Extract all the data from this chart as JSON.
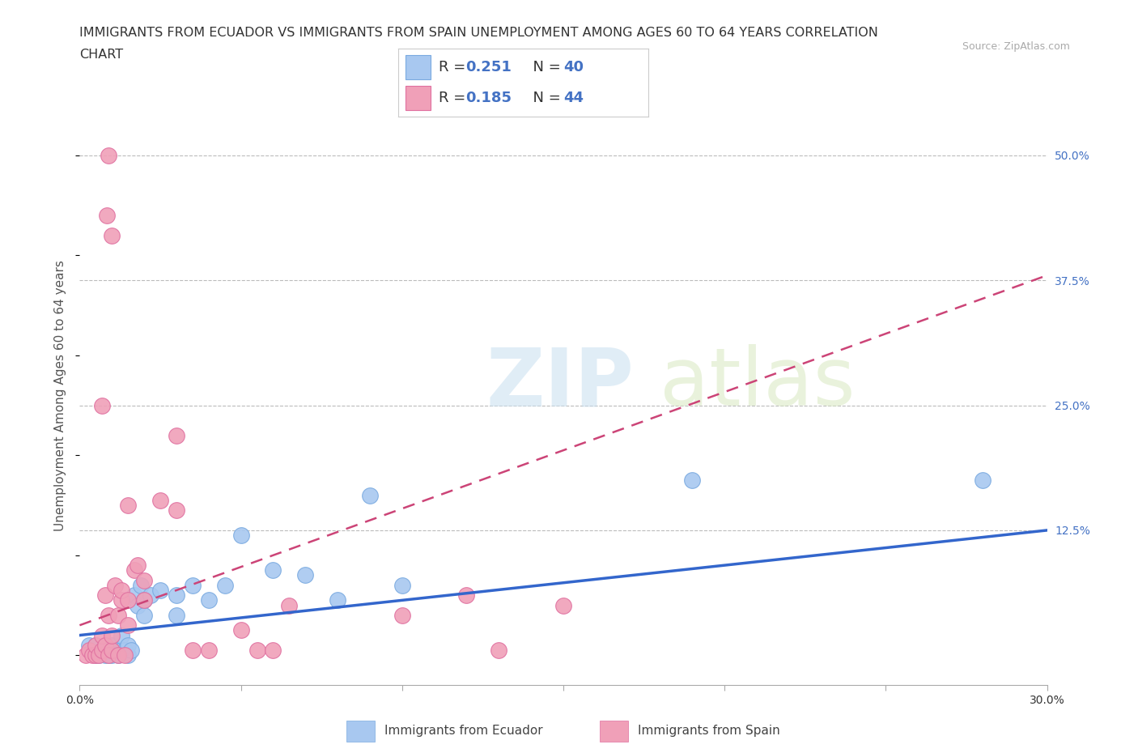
{
  "title_line1": "IMMIGRANTS FROM ECUADOR VS IMMIGRANTS FROM SPAIN UNEMPLOYMENT AMONG AGES 60 TO 64 YEARS CORRELATION",
  "title_line2": "CHART",
  "source": "Source: ZipAtlas.com",
  "ylabel": "Unemployment Among Ages 60 to 64 years",
  "xlim": [
    0.0,
    0.3
  ],
  "ylim": [
    -0.03,
    0.55
  ],
  "xticks": [
    0.0,
    0.05,
    0.1,
    0.15,
    0.2,
    0.25,
    0.3
  ],
  "ytick_labels_right": [
    "12.5%",
    "25.0%",
    "37.5%",
    "50.0%"
  ],
  "ytick_vals_right": [
    0.125,
    0.25,
    0.375,
    0.5
  ],
  "grid_color": "#bbbbbb",
  "ecuador_color": "#a8c8f0",
  "spain_color": "#f0a0b8",
  "ecuador_edge": "#7aaae0",
  "spain_edge": "#e070a0",
  "ecuador_R": "0.251",
  "ecuador_N": "40",
  "spain_R": "0.185",
  "spain_N": "44",
  "ecuador_scatter": [
    [
      0.003,
      0.01
    ],
    [
      0.004,
      0.005
    ],
    [
      0.005,
      0.0
    ],
    [
      0.005,
      0.01
    ],
    [
      0.006,
      0.0
    ],
    [
      0.007,
      0.005
    ],
    [
      0.008,
      0.0
    ],
    [
      0.008,
      0.01
    ],
    [
      0.009,
      0.0
    ],
    [
      0.009,
      0.005
    ],
    [
      0.01,
      0.0
    ],
    [
      0.01,
      0.01
    ],
    [
      0.011,
      0.005
    ],
    [
      0.012,
      0.0
    ],
    [
      0.013,
      0.005
    ],
    [
      0.013,
      0.02
    ],
    [
      0.014,
      0.005
    ],
    [
      0.015,
      0.0
    ],
    [
      0.015,
      0.01
    ],
    [
      0.016,
      0.005
    ],
    [
      0.017,
      0.06
    ],
    [
      0.018,
      0.05
    ],
    [
      0.019,
      0.07
    ],
    [
      0.02,
      0.04
    ],
    [
      0.02,
      0.055
    ],
    [
      0.022,
      0.06
    ],
    [
      0.025,
      0.065
    ],
    [
      0.03,
      0.04
    ],
    [
      0.03,
      0.06
    ],
    [
      0.035,
      0.07
    ],
    [
      0.04,
      0.055
    ],
    [
      0.045,
      0.07
    ],
    [
      0.05,
      0.12
    ],
    [
      0.06,
      0.085
    ],
    [
      0.07,
      0.08
    ],
    [
      0.08,
      0.055
    ],
    [
      0.09,
      0.16
    ],
    [
      0.1,
      0.07
    ],
    [
      0.19,
      0.175
    ],
    [
      0.28,
      0.175
    ]
  ],
  "spain_scatter": [
    [
      0.002,
      0.0
    ],
    [
      0.003,
      0.005
    ],
    [
      0.004,
      0.0
    ],
    [
      0.005,
      0.0
    ],
    [
      0.005,
      0.01
    ],
    [
      0.006,
      0.0
    ],
    [
      0.007,
      0.005
    ],
    [
      0.007,
      0.02
    ],
    [
      0.008,
      0.01
    ],
    [
      0.008,
      0.06
    ],
    [
      0.009,
      0.0
    ],
    [
      0.009,
      0.04
    ],
    [
      0.01,
      0.005
    ],
    [
      0.01,
      0.02
    ],
    [
      0.011,
      0.07
    ],
    [
      0.012,
      0.0
    ],
    [
      0.012,
      0.04
    ],
    [
      0.013,
      0.055
    ],
    [
      0.013,
      0.065
    ],
    [
      0.014,
      0.0
    ],
    [
      0.015,
      0.03
    ],
    [
      0.015,
      0.055
    ],
    [
      0.015,
      0.15
    ],
    [
      0.017,
      0.085
    ],
    [
      0.018,
      0.09
    ],
    [
      0.02,
      0.055
    ],
    [
      0.02,
      0.075
    ],
    [
      0.025,
      0.155
    ],
    [
      0.03,
      0.145
    ],
    [
      0.03,
      0.22
    ],
    [
      0.035,
      0.005
    ],
    [
      0.04,
      0.005
    ],
    [
      0.05,
      0.025
    ],
    [
      0.055,
      0.005
    ],
    [
      0.06,
      0.005
    ],
    [
      0.065,
      0.05
    ],
    [
      0.007,
      0.25
    ],
    [
      0.0085,
      0.44
    ],
    [
      0.009,
      0.5
    ],
    [
      0.01,
      0.42
    ],
    [
      0.1,
      0.04
    ],
    [
      0.12,
      0.06
    ],
    [
      0.13,
      0.005
    ],
    [
      0.15,
      0.05
    ]
  ],
  "ecuador_trend": [
    0.0,
    0.3,
    0.02,
    0.125
  ],
  "spain_trend": [
    0.0,
    0.3,
    0.03,
    0.38
  ],
  "title_fontsize": 11.5,
  "axis_label_fontsize": 11,
  "tick_fontsize": 10,
  "background_color": "#ffffff"
}
